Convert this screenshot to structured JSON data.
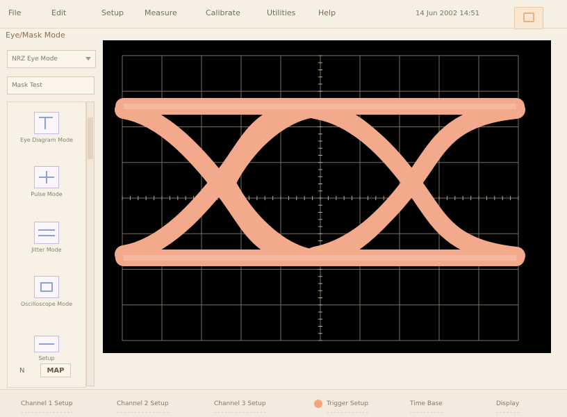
{
  "menu": [
    "File",
    "Edit",
    "Setup",
    "Measure",
    "Calibrate",
    "Utilities",
    "Help"
  ],
  "clock": "14 Jun 2002 14:51",
  "subtitle": "Eye/Mask Mode",
  "left_panel": {
    "dropdown": "NRZ Eye Mode",
    "field": "Mask Test",
    "tools": [
      {
        "label": "Eye Diagram Mode",
        "icon": "eye-diagram-icon"
      },
      {
        "label": "Pulse Mode",
        "icon": "pulse-icon"
      },
      {
        "label": "Jitter Mode",
        "icon": "jitter-icon"
      },
      {
        "label": "Oscilloscope Mode",
        "icon": "scope-icon"
      },
      {
        "label": "Setup",
        "icon": "setup-icon"
      }
    ],
    "bottom_label": "N",
    "bottom_value": "MAP"
  },
  "bottom_bar": [
    "Channel 1 Setup",
    "Channel 2 Setup",
    "Channel 3 Setup",
    "Trigger Setup",
    "Time Base",
    "Display"
  ],
  "colors": {
    "trace": "#f2a98c",
    "grid": "#7a7063",
    "background": "#000000",
    "accent": "#f0a77a"
  }
}
